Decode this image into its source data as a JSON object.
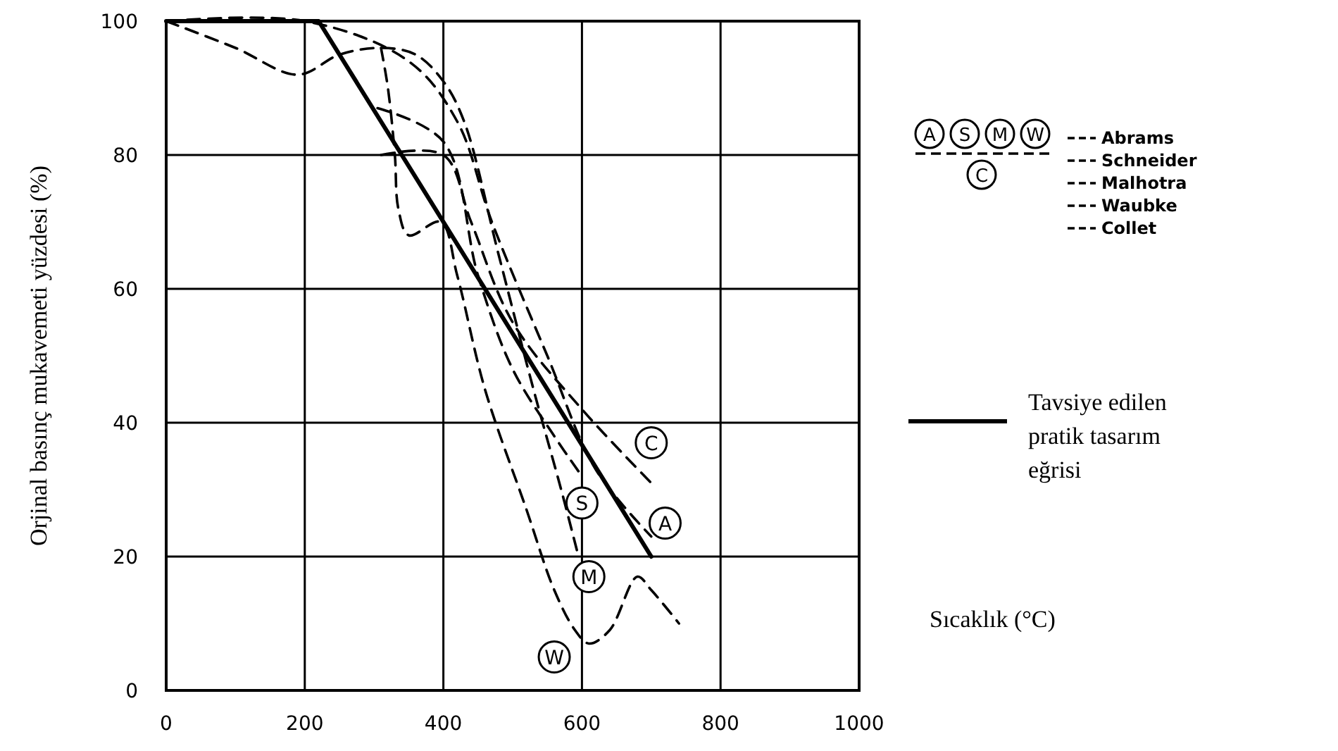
{
  "chart_data": {
    "type": "line",
    "xlabel": "Sıcaklık (°C)",
    "ylabel": "Orjinal basınç mukavemeti yüzdesi (%)",
    "xlim": [
      0,
      1000
    ],
    "xticks": [
      0,
      200,
      400,
      600,
      800,
      1000
    ],
    "ylim": [
      0,
      100
    ],
    "yticks": [
      0,
      20,
      40,
      60,
      80,
      100
    ],
    "grid": true,
    "legend": "right",
    "marker": "none",
    "series": [
      {
        "name": "Tavsiye edilen pratik tasarım eğrisi",
        "color": "#000000",
        "line_style": "solid",
        "x": [
          0,
          220,
          700
        ],
        "values": [
          100,
          100,
          20
        ]
      },
      {
        "name": "Abrams",
        "color": "#000000",
        "line_style": "dashed",
        "x": [
          0,
          200,
          350,
          420,
          470,
          550,
          620,
          700
        ],
        "values": [
          100,
          100,
          94,
          85,
          70,
          50,
          33,
          23
        ]
      },
      {
        "name": "Schneider",
        "color": "#000000",
        "line_style": "dashed",
        "x": [
          305,
          400,
          450,
          500,
          560,
          600
        ],
        "values": [
          87,
          82,
          62,
          48,
          38,
          32
        ]
      },
      {
        "name": "Malhotra",
        "color": "#000000",
        "line_style": "dashed",
        "x": [
          0,
          100,
          190,
          250,
          310,
          360,
          400,
          430,
          480,
          530,
          570,
          595
        ],
        "values": [
          100,
          96,
          92,
          95,
          96,
          95,
          91,
          85,
          65,
          45,
          30,
          20
        ]
      },
      {
        "name": "Waubke",
        "color": "#000000",
        "line_style": "dashed",
        "x": [
          310,
          320,
          330,
          335,
          350,
          396,
          420,
          460,
          520,
          560,
          590,
          610,
          640,
          680,
          700,
          740
        ],
        "values": [
          96,
          90,
          80,
          72,
          68,
          70,
          62,
          45,
          27,
          15,
          9,
          7,
          9,
          17,
          15,
          10
        ]
      },
      {
        "name": "Collet",
        "color": "#000000",
        "line_style": "dashed",
        "x": [
          310,
          400,
          440,
          500,
          600,
          700
        ],
        "values": [
          80,
          80,
          70,
          55,
          42,
          31
        ]
      }
    ],
    "annotations": [
      {
        "text": "A",
        "x": 720,
        "y": 25
      },
      {
        "text": "S",
        "x": 600,
        "y": 28
      },
      {
        "text": "M",
        "x": 610,
        "y": 17
      },
      {
        "text": "W",
        "x": 560,
        "y": 5
      },
      {
        "text": "C",
        "x": 700,
        "y": 37
      }
    ]
  }
}
